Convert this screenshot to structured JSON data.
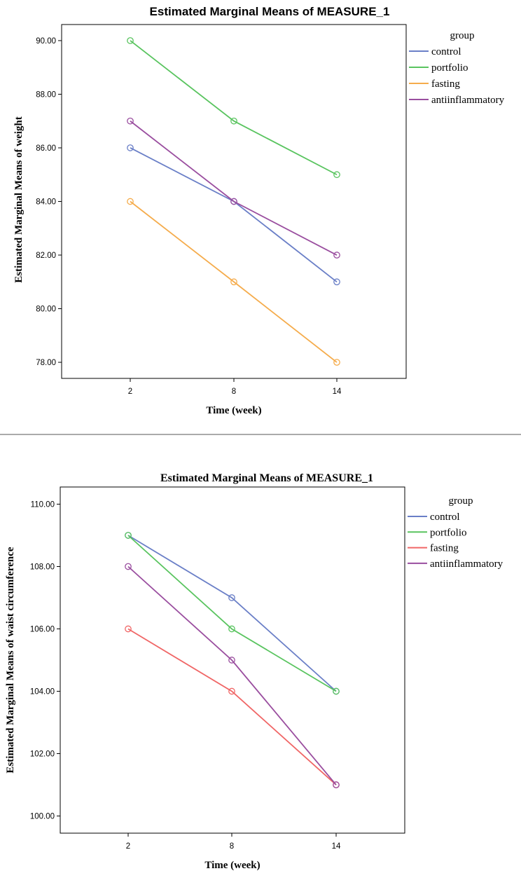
{
  "chart_data": [
    {
      "type": "line",
      "title": "Estimated Marginal Means of MEASURE_1",
      "xlabel": "Time (week)",
      "ylabel": "Estimated Marginal Means of weight",
      "categories": [
        "2",
        "8",
        "14"
      ],
      "ylim": [
        77.4,
        90.6
      ],
      "yticks": [
        "78.00",
        "80.00",
        "82.00",
        "84.00",
        "86.00",
        "88.00",
        "90.00"
      ],
      "ytick_values": [
        78,
        80,
        82,
        84,
        86,
        88,
        90
      ],
      "legend_title": "group",
      "legend_position": "right",
      "series": [
        {
          "name": "control",
          "color": "#6a7fc7",
          "values": [
            86,
            84,
            81
          ]
        },
        {
          "name": "portfolio",
          "color": "#59c45f",
          "values": [
            90,
            87,
            85
          ]
        },
        {
          "name": "fasting",
          "color": "#f5ac4c",
          "values": [
            84,
            81,
            78
          ]
        },
        {
          "name": "antiinflammatory",
          "color": "#9a4e9f",
          "values": [
            87,
            84,
            82
          ]
        }
      ]
    },
    {
      "type": "line",
      "title": "Estimated Marginal Means of MEASURE_1",
      "xlabel": "Time (week)",
      "ylabel": "Estimated Marginal Means of waist circumference",
      "categories": [
        "2",
        "8",
        "14"
      ],
      "ylim": [
        99.45,
        110.55
      ],
      "yticks": [
        "100.00",
        "102.00",
        "104.00",
        "106.00",
        "108.00",
        "110.00"
      ],
      "ytick_values": [
        100,
        102,
        104,
        106,
        108,
        110
      ],
      "legend_title": "group",
      "legend_position": "right",
      "series": [
        {
          "name": "control",
          "color": "#6a7fc7",
          "values": [
            109,
            107,
            104
          ]
        },
        {
          "name": "portfolio",
          "color": "#59c45f",
          "values": [
            109,
            106,
            104
          ]
        },
        {
          "name": "fasting",
          "color": "#f06666",
          "values": [
            106,
            104,
            101
          ]
        },
        {
          "name": "antiinflammatory",
          "color": "#9a4e9f",
          "values": [
            108,
            105,
            101
          ]
        }
      ]
    }
  ]
}
